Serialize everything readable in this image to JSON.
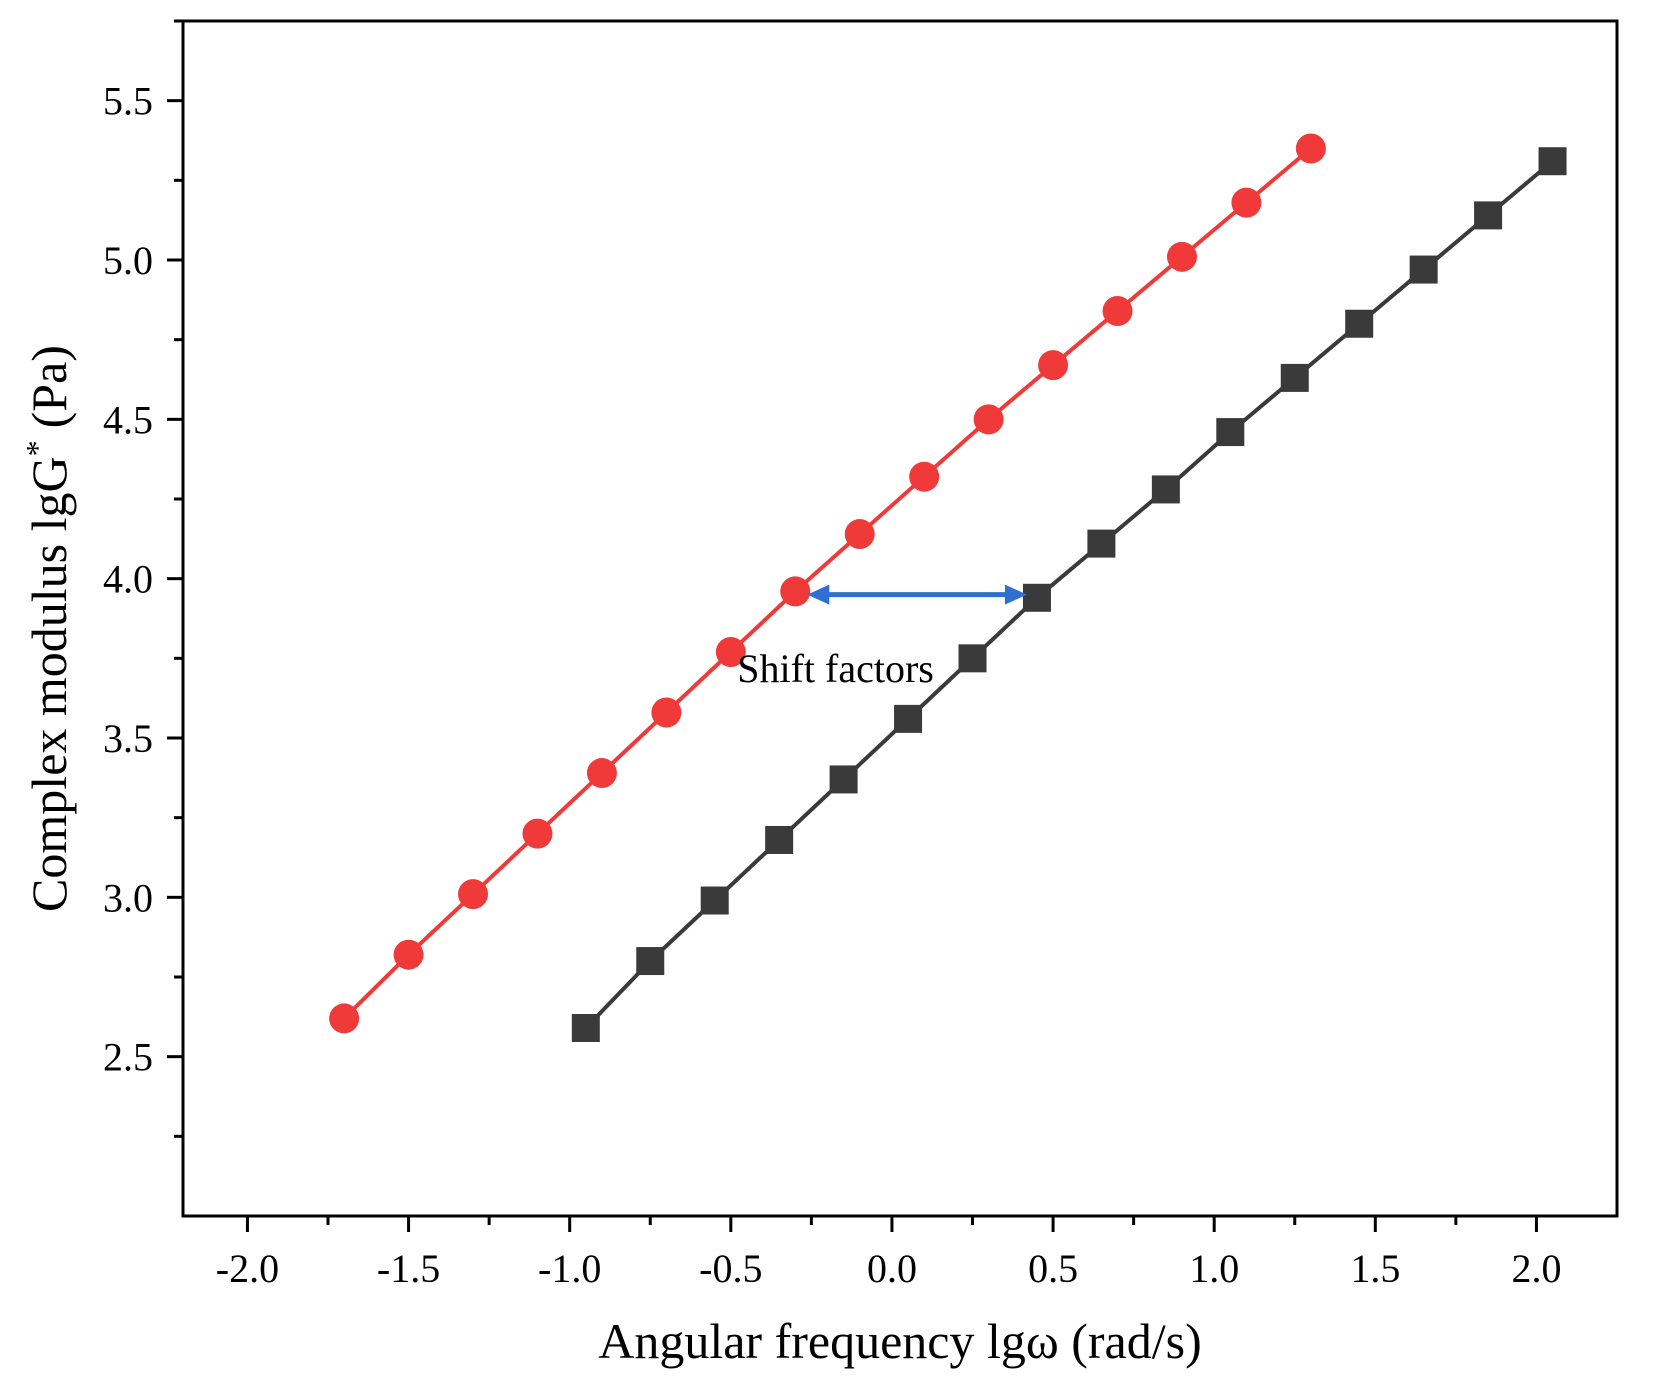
{
  "chart_data": {
    "type": "line",
    "title": "",
    "xlabel": "Angular frequency lgω (rad/s)",
    "ylabel_main": "Complex modulus lgG",
    "ylabel_sup": "*",
    "ylabel_unit": "(Pa)",
    "xlim": [
      -2.2,
      2.25
    ],
    "ylim": [
      2.0,
      5.75
    ],
    "x_ticks": [
      -2.0,
      -1.5,
      -1.0,
      -0.5,
      0.0,
      0.5,
      1.0,
      1.5,
      2.0
    ],
    "x_tick_labels": [
      "-2.0",
      "-1.5",
      "-1.0",
      "-0.5",
      "0.0",
      "0.5",
      "1.0",
      "1.5",
      "2.0"
    ],
    "y_ticks": [
      2.5,
      3.0,
      3.5,
      4.0,
      4.5,
      5.0,
      5.5
    ],
    "y_tick_labels": [
      "2.5",
      "3.0",
      "3.5",
      "4.0",
      "4.5",
      "5.0",
      "5.5"
    ],
    "grid": false,
    "series": [
      {
        "name": "red-circles",
        "color": "#f03a3a",
        "marker": "circle",
        "x": [
          -1.7,
          -1.5,
          -1.3,
          -1.1,
          -0.9,
          -0.7,
          -0.5,
          -0.3,
          -0.1,
          0.1,
          0.3,
          0.5,
          0.7,
          0.9,
          1.1,
          1.3
        ],
        "y": [
          2.62,
          2.82,
          3.01,
          3.2,
          3.39,
          3.58,
          3.77,
          3.96,
          4.14,
          4.32,
          4.5,
          4.67,
          4.84,
          5.01,
          5.18,
          5.35
        ]
      },
      {
        "name": "black-squares",
        "color": "#3a3a3a",
        "marker": "square",
        "x": [
          -0.95,
          -0.75,
          -0.55,
          -0.35,
          -0.15,
          0.05,
          0.25,
          0.45,
          0.65,
          0.85,
          1.05,
          1.25,
          1.45,
          1.65,
          1.85,
          2.05
        ],
        "y": [
          2.59,
          2.8,
          2.99,
          3.18,
          3.37,
          3.56,
          3.75,
          3.94,
          4.11,
          4.28,
          4.46,
          4.63,
          4.8,
          4.97,
          5.14,
          5.31
        ]
      }
    ],
    "annotation": {
      "text": "Shift factors",
      "arrow_from": [
        -0.3,
        3.95
      ],
      "arrow_to": [
        0.45,
        3.95
      ],
      "arrow_color": "#2e6fd0",
      "text_anchor_point": [
        -0.48,
        3.72
      ]
    }
  }
}
